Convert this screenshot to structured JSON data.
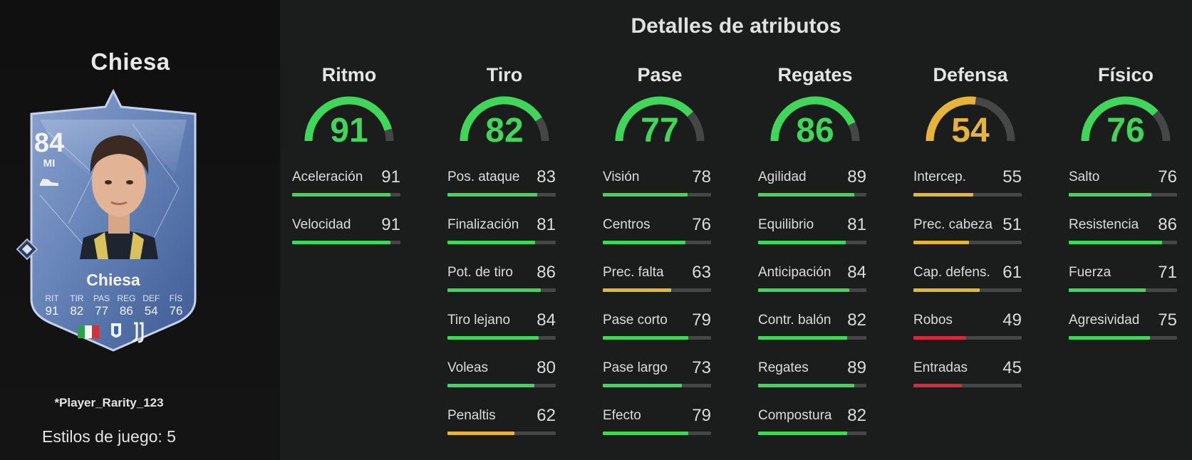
{
  "player": {
    "name": "Chiesa",
    "rarity": "*Player_Rarity_123",
    "playstyles": "Estilos de juego: 5"
  },
  "card": {
    "rating": "84",
    "position": "MI",
    "name": "Chiesa",
    "stats": [
      {
        "label": "RIT",
        "value": "91"
      },
      {
        "label": "TIR",
        "value": "82"
      },
      {
        "label": "PAS",
        "value": "77"
      },
      {
        "label": "REG",
        "value": "86"
      },
      {
        "label": "DEF",
        "value": "54"
      },
      {
        "label": "FÍS",
        "value": "76"
      }
    ]
  },
  "panel": {
    "title": "Detalles de atributos"
  },
  "colors": {
    "green": "#3fd65a",
    "yellow": "#e7b43a",
    "red": "#d8283c",
    "track": "#454747"
  },
  "categories": [
    {
      "name": "Ritmo",
      "value": 91,
      "color": "#3fd65a",
      "attributes": [
        {
          "label": "Aceleración",
          "value": 91,
          "color": "#3fd65a"
        },
        {
          "label": "Velocidad",
          "value": 91,
          "color": "#3fd65a"
        }
      ]
    },
    {
      "name": "Tiro",
      "value": 82,
      "color": "#3fd65a",
      "attributes": [
        {
          "label": "Pos. ataque",
          "value": 83,
          "color": "#3fd65a"
        },
        {
          "label": "Finalización",
          "value": 81,
          "color": "#3fd65a"
        },
        {
          "label": "Pot. de tiro",
          "value": 86,
          "color": "#3fd65a"
        },
        {
          "label": "Tiro lejano",
          "value": 84,
          "color": "#3fd65a"
        },
        {
          "label": "Voleas",
          "value": 80,
          "color": "#3fd65a"
        },
        {
          "label": "Penaltis",
          "value": 62,
          "color": "#e7b43a"
        }
      ]
    },
    {
      "name": "Pase",
      "value": 77,
      "color": "#3fd65a",
      "attributes": [
        {
          "label": "Visión",
          "value": 78,
          "color": "#3fd65a"
        },
        {
          "label": "Centros",
          "value": 76,
          "color": "#3fd65a"
        },
        {
          "label": "Prec. falta",
          "value": 63,
          "color": "#e7b43a"
        },
        {
          "label": "Pase corto",
          "value": 79,
          "color": "#3fd65a"
        },
        {
          "label": "Pase largo",
          "value": 73,
          "color": "#3fd65a"
        },
        {
          "label": "Efecto",
          "value": 79,
          "color": "#3fd65a"
        }
      ]
    },
    {
      "name": "Regates",
      "value": 86,
      "color": "#3fd65a",
      "attributes": [
        {
          "label": "Agilidad",
          "value": 89,
          "color": "#3fd65a"
        },
        {
          "label": "Equilibrio",
          "value": 81,
          "color": "#3fd65a"
        },
        {
          "label": "Anticipación",
          "value": 84,
          "color": "#3fd65a"
        },
        {
          "label": "Contr. balón",
          "value": 82,
          "color": "#3fd65a"
        },
        {
          "label": "Regates",
          "value": 89,
          "color": "#3fd65a"
        },
        {
          "label": "Compostura",
          "value": 82,
          "color": "#3fd65a"
        }
      ]
    },
    {
      "name": "Defensa",
      "value": 54,
      "color": "#e7b43a",
      "attributes": [
        {
          "label": "Intercep.",
          "value": 55,
          "color": "#e7b43a"
        },
        {
          "label": "Prec. cabeza",
          "value": 51,
          "color": "#e7b43a"
        },
        {
          "label": "Cap. defens.",
          "value": 61,
          "color": "#e7b43a"
        },
        {
          "label": "Robos",
          "value": 49,
          "color": "#d8283c"
        },
        {
          "label": "Entradas",
          "value": 45,
          "color": "#d8283c"
        }
      ]
    },
    {
      "name": "Físico",
      "value": 76,
      "color": "#3fd65a",
      "attributes": [
        {
          "label": "Salto",
          "value": 76,
          "color": "#3fd65a"
        },
        {
          "label": "Resistencia",
          "value": 86,
          "color": "#3fd65a"
        },
        {
          "label": "Fuerza",
          "value": 71,
          "color": "#3fd65a"
        },
        {
          "label": "Agresividad",
          "value": 75,
          "color": "#3fd65a"
        }
      ]
    }
  ]
}
